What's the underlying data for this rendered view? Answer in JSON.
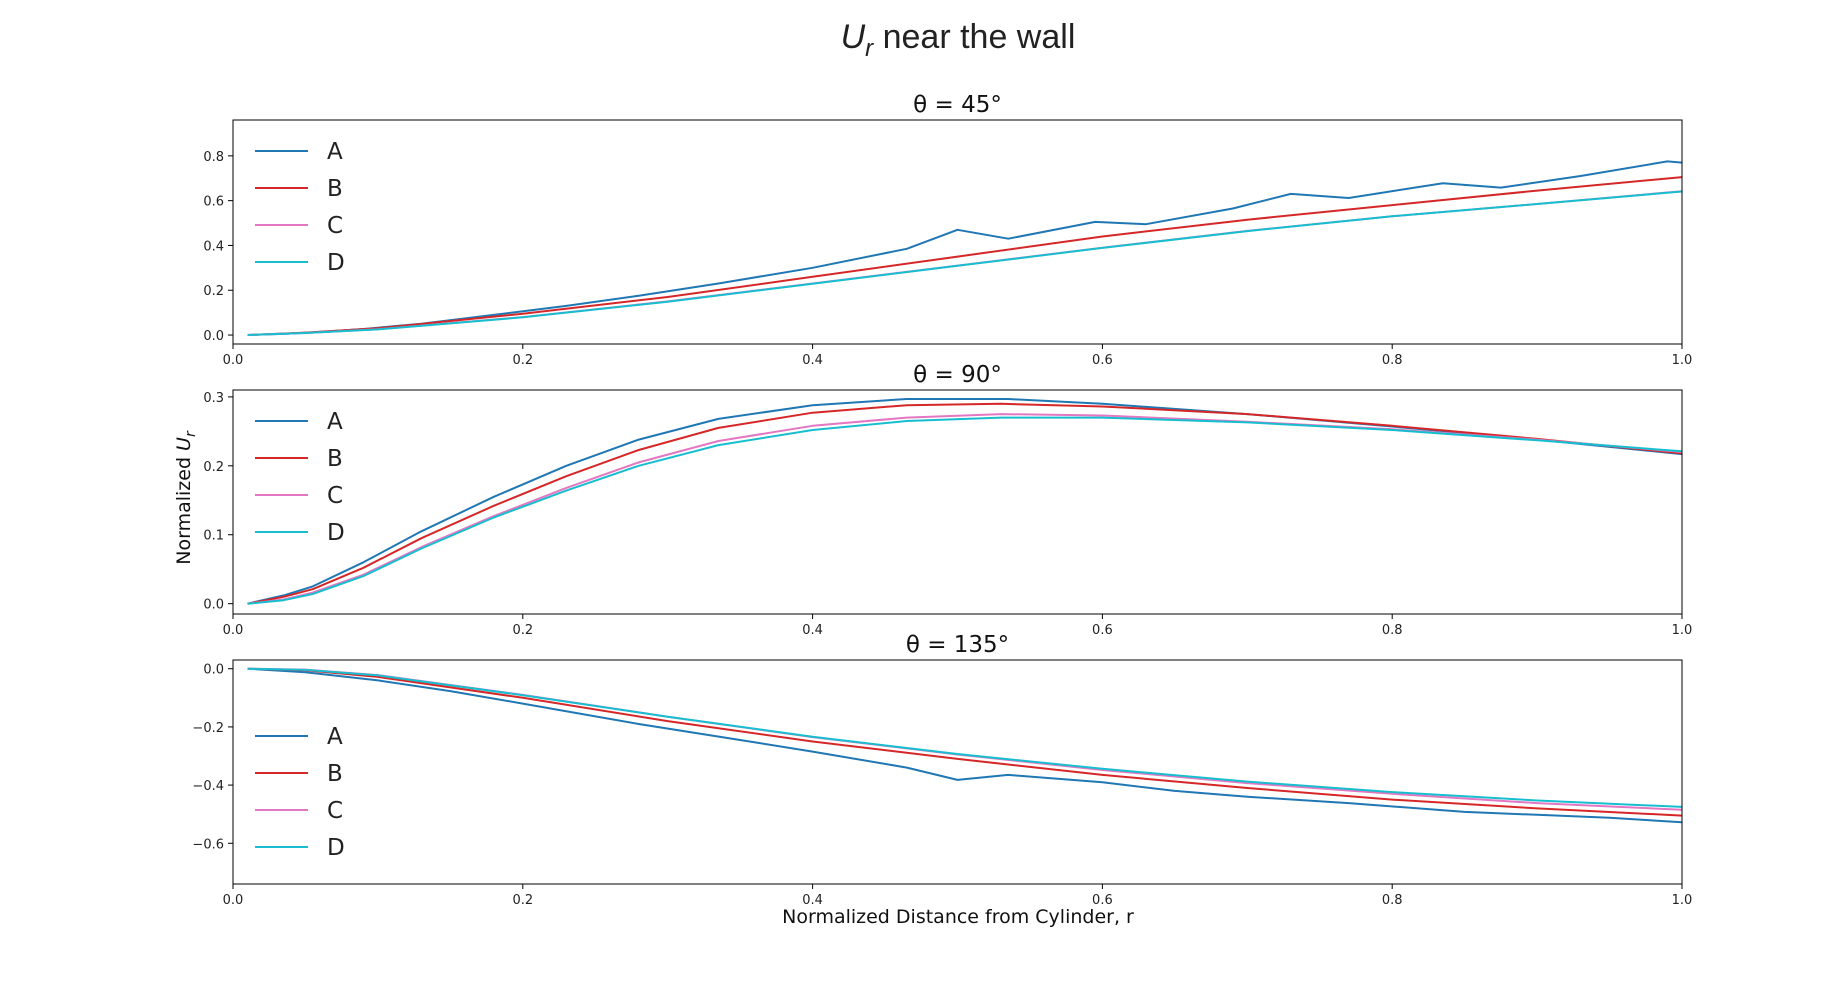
{
  "figure": {
    "suptitle_symbol": "U",
    "suptitle_subscript": "r",
    "suptitle_rest": " near the wall",
    "xlabel": "Normalized Distance from Cylinder, r",
    "ylabel_text": "Normalized ",
    "ylabel_symbol": "U",
    "ylabel_subscript": "r"
  },
  "colors": {
    "A": "#1f77b4",
    "B": "#d62728",
    "C": "#e377c2",
    "D": "#17becf"
  },
  "chart_data": [
    {
      "type": "line",
      "title": "θ = 45°",
      "xlabel": "Normalized Distance from Cylinder, r",
      "ylabel": "",
      "xlim": [
        0.0,
        1.0
      ],
      "ylim": [
        -0.04,
        0.96
      ],
      "xticks": [
        "0.0",
        "0.2",
        "0.4",
        "0.6",
        "0.8",
        "1.0"
      ],
      "yticks": [
        "0.0",
        "0.2",
        "0.4",
        "0.6",
        "0.8"
      ],
      "legend": "upper-left",
      "series": [
        {
          "name": "A",
          "x": [
            0.01,
            0.035,
            0.055,
            0.09,
            0.13,
            0.18,
            0.23,
            0.28,
            0.335,
            0.4,
            0.465,
            0.5,
            0.535,
            0.595,
            0.63,
            0.69,
            0.73,
            0.77,
            0.835,
            0.875,
            0.93,
            0.99,
            1.0
          ],
          "y": [
            0.0,
            0.005,
            0.012,
            0.027,
            0.05,
            0.09,
            0.13,
            0.175,
            0.23,
            0.3,
            0.385,
            0.47,
            0.43,
            0.505,
            0.495,
            0.565,
            0.63,
            0.612,
            0.678,
            0.658,
            0.71,
            0.775,
            0.77
          ]
        },
        {
          "name": "B",
          "x": [
            0.01,
            0.05,
            0.1,
            0.2,
            0.3,
            0.4,
            0.5,
            0.6,
            0.7,
            0.8,
            0.9,
            1.0
          ],
          "y": [
            0.0,
            0.011,
            0.03,
            0.095,
            0.17,
            0.26,
            0.35,
            0.44,
            0.515,
            0.58,
            0.645,
            0.705
          ]
        },
        {
          "name": "C",
          "x": [
            0.01,
            0.05,
            0.1,
            0.2,
            0.3,
            0.4,
            0.5,
            0.6,
            0.7,
            0.8,
            0.9,
            1.0
          ],
          "y": [
            0.0,
            0.009,
            0.026,
            0.08,
            0.15,
            0.23,
            0.31,
            0.39,
            0.465,
            0.53,
            0.585,
            0.642
          ]
        },
        {
          "name": "D",
          "x": [
            0.01,
            0.05,
            0.1,
            0.2,
            0.3,
            0.4,
            0.5,
            0.6,
            0.7,
            0.8,
            0.9,
            1.0
          ],
          "y": [
            0.0,
            0.009,
            0.025,
            0.079,
            0.149,
            0.229,
            0.309,
            0.389,
            0.464,
            0.53,
            0.585,
            0.641
          ]
        }
      ]
    },
    {
      "type": "line",
      "title": "θ = 90°",
      "xlabel": "",
      "ylabel": "Normalized Ur",
      "xlim": [
        0.0,
        1.0
      ],
      "ylim": [
        -0.015,
        0.31
      ],
      "xticks": [
        "0.0",
        "0.2",
        "0.4",
        "0.6",
        "0.8",
        "1.0"
      ],
      "yticks": [
        "0.0",
        "0.1",
        "0.2",
        "0.3"
      ],
      "legend": "upper-left",
      "series": [
        {
          "name": "A",
          "x": [
            0.01,
            0.035,
            0.055,
            0.09,
            0.13,
            0.18,
            0.23,
            0.28,
            0.335,
            0.4,
            0.465,
            0.535,
            0.6,
            0.7,
            0.8,
            0.9,
            1.0
          ],
          "y": [
            0.0,
            0.012,
            0.025,
            0.06,
            0.105,
            0.155,
            0.2,
            0.238,
            0.268,
            0.288,
            0.297,
            0.297,
            0.29,
            0.275,
            0.257,
            0.238,
            0.217
          ]
        },
        {
          "name": "B",
          "x": [
            0.01,
            0.035,
            0.055,
            0.09,
            0.13,
            0.18,
            0.23,
            0.28,
            0.335,
            0.4,
            0.465,
            0.53,
            0.6,
            0.7,
            0.8,
            0.9,
            1.0
          ],
          "y": [
            0.0,
            0.01,
            0.021,
            0.052,
            0.095,
            0.142,
            0.185,
            0.223,
            0.255,
            0.277,
            0.288,
            0.29,
            0.286,
            0.275,
            0.258,
            0.239,
            0.218
          ]
        },
        {
          "name": "C",
          "x": [
            0.01,
            0.035,
            0.055,
            0.09,
            0.13,
            0.18,
            0.23,
            0.28,
            0.335,
            0.4,
            0.465,
            0.53,
            0.6,
            0.7,
            0.8,
            0.9,
            1.0
          ],
          "y": [
            0.0,
            0.006,
            0.016,
            0.042,
            0.082,
            0.127,
            0.168,
            0.205,
            0.236,
            0.258,
            0.27,
            0.275,
            0.273,
            0.264,
            0.253,
            0.238,
            0.22
          ]
        },
        {
          "name": "D",
          "x": [
            0.01,
            0.035,
            0.055,
            0.09,
            0.13,
            0.18,
            0.23,
            0.28,
            0.335,
            0.4,
            0.465,
            0.53,
            0.6,
            0.7,
            0.8,
            0.9,
            1.0
          ],
          "y": [
            0.0,
            0.005,
            0.014,
            0.04,
            0.08,
            0.125,
            0.164,
            0.2,
            0.23,
            0.252,
            0.265,
            0.27,
            0.27,
            0.263,
            0.252,
            0.237,
            0.221
          ]
        }
      ]
    },
    {
      "type": "line",
      "title": "θ = 135°",
      "xlabel": "",
      "ylabel": "",
      "xlim": [
        0.0,
        1.0
      ],
      "ylim": [
        -0.74,
        0.03
      ],
      "xticks": [
        "0.0",
        "0.2",
        "0.4",
        "0.6",
        "0.8",
        "1.0"
      ],
      "yticks": [
        "0.0",
        "−0.2",
        "−0.4",
        "−0.6"
      ],
      "legend": "lower-left",
      "series": [
        {
          "name": "A",
          "x": [
            0.01,
            0.05,
            0.1,
            0.15,
            0.2,
            0.28,
            0.35,
            0.4,
            0.465,
            0.5,
            0.535,
            0.6,
            0.65,
            0.7,
            0.77,
            0.85,
            0.9,
            0.95,
            1.0
          ],
          "y": [
            0.0,
            -0.012,
            -0.04,
            -0.077,
            -0.12,
            -0.19,
            -0.245,
            -0.285,
            -0.34,
            -0.382,
            -0.365,
            -0.39,
            -0.42,
            -0.44,
            -0.462,
            -0.492,
            -0.502,
            -0.512,
            -0.528
          ]
        },
        {
          "name": "B",
          "x": [
            0.01,
            0.05,
            0.1,
            0.2,
            0.3,
            0.4,
            0.5,
            0.6,
            0.7,
            0.8,
            0.9,
            1.0
          ],
          "y": [
            0.0,
            -0.005,
            -0.028,
            -0.1,
            -0.18,
            -0.25,
            -0.31,
            -0.365,
            -0.41,
            -0.45,
            -0.48,
            -0.505
          ]
        },
        {
          "name": "C",
          "x": [
            0.01,
            0.05,
            0.1,
            0.2,
            0.3,
            0.4,
            0.5,
            0.6,
            0.7,
            0.8,
            0.9,
            1.0
          ],
          "y": [
            0.0,
            -0.003,
            -0.022,
            -0.09,
            -0.165,
            -0.235,
            -0.295,
            -0.348,
            -0.393,
            -0.43,
            -0.462,
            -0.485
          ]
        },
        {
          "name": "D",
          "x": [
            0.01,
            0.05,
            0.1,
            0.2,
            0.3,
            0.4,
            0.5,
            0.6,
            0.7,
            0.8,
            0.9,
            1.0
          ],
          "y": [
            0.0,
            -0.004,
            -0.023,
            -0.091,
            -0.165,
            -0.234,
            -0.293,
            -0.344,
            -0.388,
            -0.424,
            -0.453,
            -0.475
          ]
        }
      ]
    }
  ]
}
